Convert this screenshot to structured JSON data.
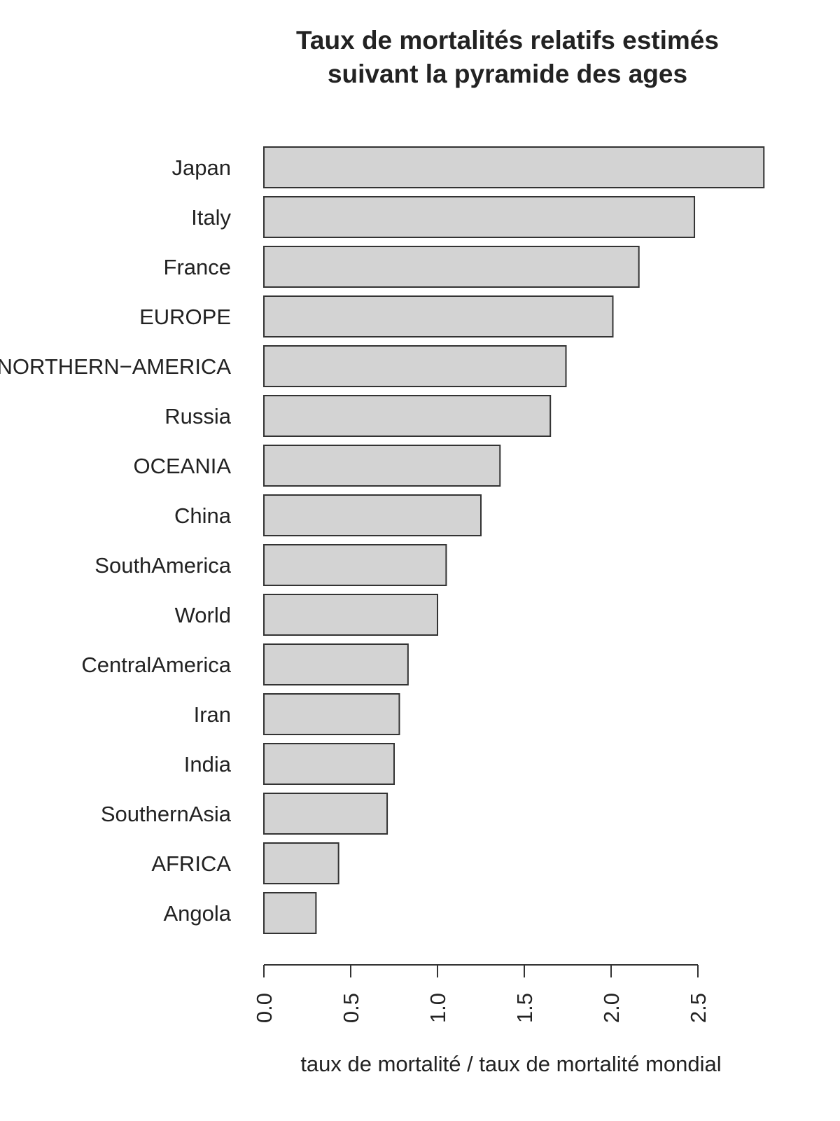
{
  "chart_data": {
    "type": "bar",
    "orientation": "horizontal",
    "title_lines": [
      "Taux de mortalités relatifs estimés",
      "suivant la pyramide des ages"
    ],
    "xlabel": "taux de mortalité / taux de mortalité mondial",
    "ylabel": "",
    "categories": [
      "Japan",
      "Italy",
      "France",
      "EUROPE",
      "NORTHERN−AMERICA",
      "Russia",
      "OCEANIA",
      "China",
      "SouthAmerica",
      "World",
      "CentralAmerica",
      "Iran",
      "India",
      "SouthernAsia",
      "AFRICA",
      "Angola"
    ],
    "values": [
      2.88,
      2.48,
      2.16,
      2.01,
      1.74,
      1.65,
      1.36,
      1.25,
      1.05,
      1.0,
      0.83,
      0.78,
      0.75,
      0.71,
      0.43,
      0.3
    ],
    "xticks": [
      "0.0",
      "0.5",
      "1.0",
      "1.5",
      "2.0",
      "2.5"
    ],
    "xlim": [
      0,
      2.88
    ],
    "grid": false,
    "legend": "none",
    "colors": {
      "bar_fill": "#d3d3d3",
      "bar_stroke": "#333333",
      "text": "#222222"
    }
  }
}
